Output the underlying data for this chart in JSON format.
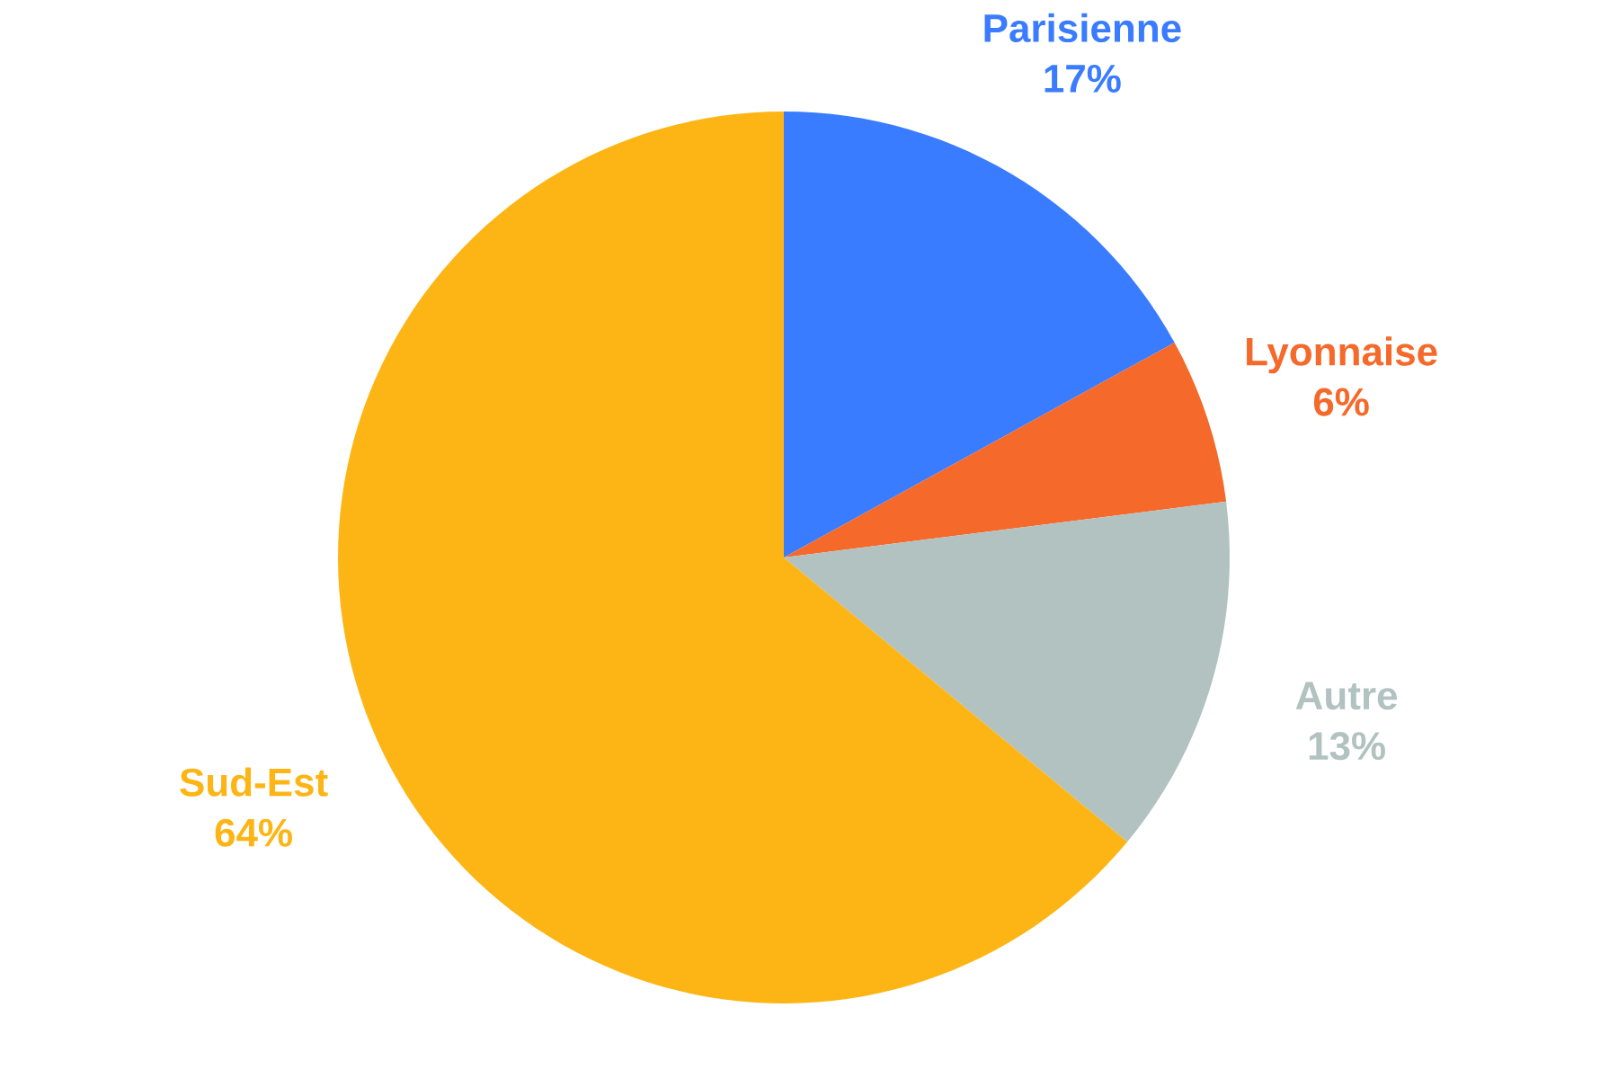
{
  "chart_data": {
    "type": "pie",
    "categories": [
      "Parisienne",
      "Lyonnaise",
      "Autre",
      "Sud-Est"
    ],
    "values": [
      17,
      6,
      13,
      64
    ],
    "colors": [
      "#3a7cff",
      "#f5692a",
      "#b1c2c1",
      "#fdb515"
    ],
    "value_labels": [
      "17%",
      "6%",
      "13%",
      "64%"
    ]
  }
}
